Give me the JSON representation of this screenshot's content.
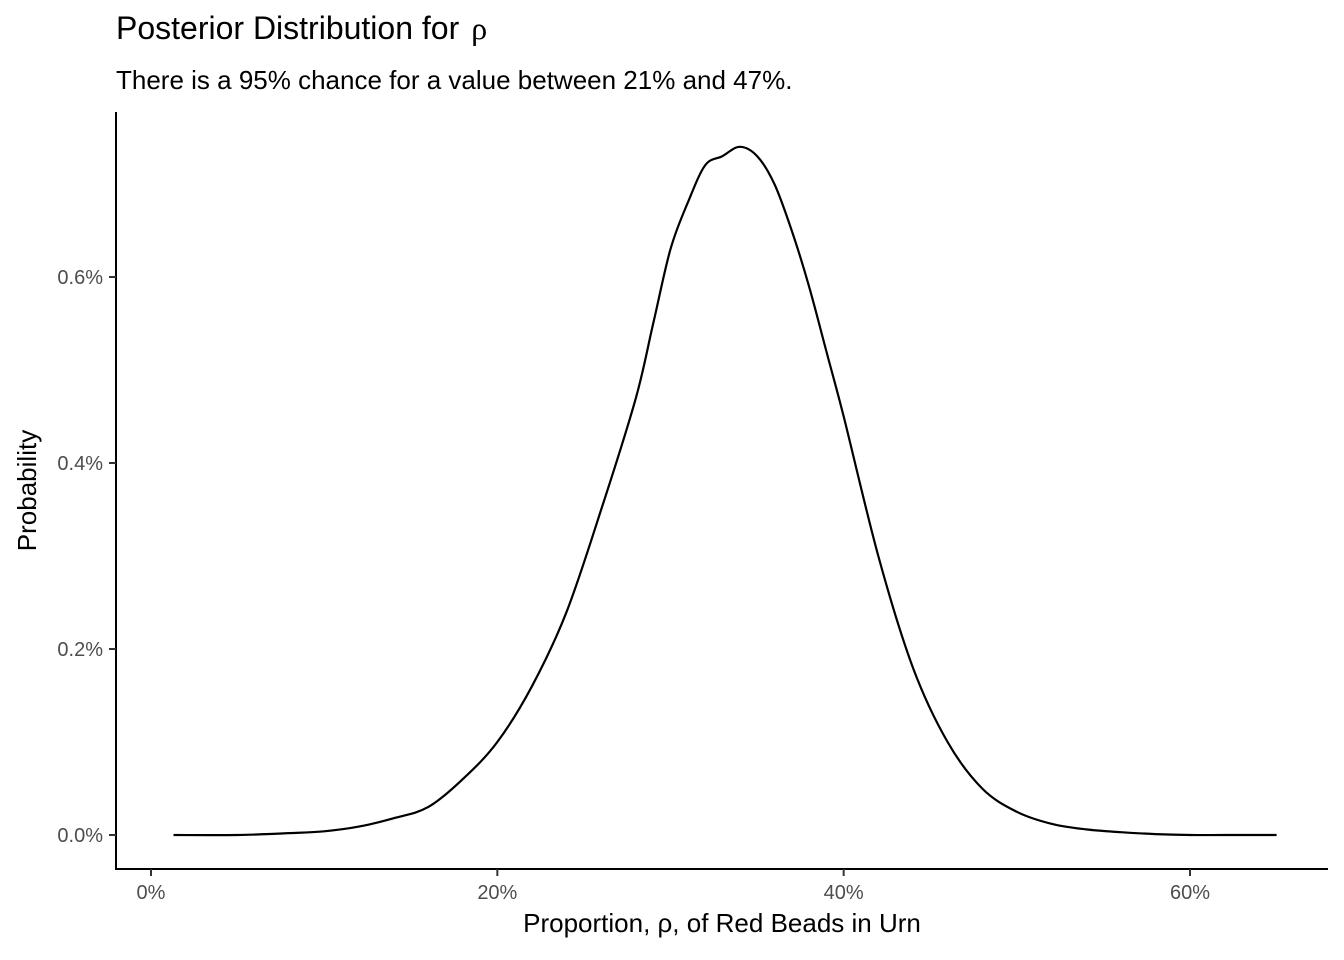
{
  "title": {
    "text": "Posterior Distribution for",
    "symbol": "ρ"
  },
  "subtitle": "There is a 95% chance for a value between 21% and 47%.",
  "chart_data": {
    "type": "line",
    "title": "Posterior Distribution for ρ",
    "subtitle": "There is a 95% chance for a value between 21% and 47%.",
    "xlabel": "Proportion, ρ, of Red Beads in Urn",
    "ylabel": "Probability",
    "xlim": [
      -0.02,
      0.68
    ],
    "ylim": [
      -0.0003,
      0.0078
    ],
    "x_ticks": [
      0,
      0.2,
      0.4,
      0.6
    ],
    "x_tick_labels": [
      "0%",
      "20%",
      "40%",
      "60%"
    ],
    "y_ticks": [
      0,
      0.002,
      0.004,
      0.006
    ],
    "y_tick_labels": [
      "0.0%",
      "0.2%",
      "0.4%",
      "0.6%"
    ],
    "grid": false,
    "legend": "none",
    "line_color": "#000000",
    "series": [
      {
        "x": [
          0.013,
          0.05,
          0.08,
          0.1,
          0.12,
          0.14,
          0.16,
          0.18,
          0.2,
          0.22,
          0.24,
          0.26,
          0.28,
          0.29,
          0.3,
          0.31,
          0.32,
          0.33,
          0.34,
          0.35,
          0.36,
          0.37,
          0.38,
          0.39,
          0.4,
          0.42,
          0.44,
          0.46,
          0.48,
          0.5,
          0.52,
          0.54,
          0.56,
          0.58,
          0.6,
          0.62,
          0.65
        ],
        "y": [
          0.0,
          0.0,
          2e-05,
          4e-05,
          9e-05,
          0.00018,
          0.0003,
          0.0006,
          0.001,
          0.0016,
          0.0024,
          0.0035,
          0.0047,
          0.0055,
          0.0063,
          0.0068,
          0.0072,
          0.0073,
          0.0074,
          0.0073,
          0.007,
          0.0065,
          0.0059,
          0.0052,
          0.0045,
          0.003,
          0.0018,
          0.001,
          0.0005,
          0.00025,
          0.00012,
          6e-05,
          3e-05,
          1e-05,
          0.0,
          0.0,
          0.0
        ]
      }
    ]
  }
}
